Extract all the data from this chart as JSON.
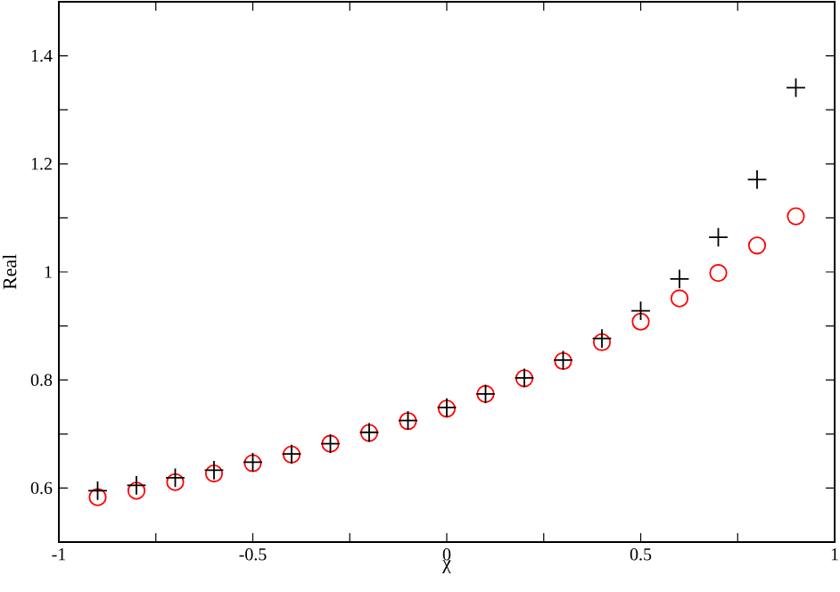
{
  "chart_data": {
    "type": "scatter",
    "xlabel": "χ",
    "ylabel": "Real",
    "x": [
      -0.9,
      -0.8,
      -0.7,
      -0.6,
      -0.5,
      -0.4,
      -0.3,
      -0.2,
      -0.1,
      0,
      0.1,
      0.2,
      0.3,
      0.4,
      0.5,
      0.6,
      0.7,
      0.8,
      0.9
    ],
    "series": [
      {
        "color": "#ff0000",
        "marker": "circle",
        "values": [
          0.583,
          0.595,
          0.611,
          0.627,
          0.646,
          0.662,
          0.682,
          0.702,
          0.724,
          0.747,
          0.774,
          0.803,
          0.835,
          0.87,
          0.908,
          0.951,
          0.998,
          1.049,
          1.103
        ]
      },
      {
        "color": "#000000",
        "marker": "cross",
        "values": [
          0.595,
          0.605,
          0.619,
          0.633,
          0.648,
          0.663,
          0.682,
          0.703,
          0.725,
          0.749,
          0.774,
          0.804,
          0.837,
          0.877,
          0.928,
          0.987,
          1.064,
          1.171,
          1.341
        ]
      }
    ],
    "xlim": [
      -1,
      1
    ],
    "ylim": [
      0.5,
      1.5
    ],
    "xticks": [
      -1,
      {
        "value": -0.75,
        "label": null
      },
      -0.5,
      {
        "value": -0.25,
        "label": null
      },
      0,
      {
        "value": 0.25,
        "label": null
      },
      0.5,
      {
        "value": 0.75,
        "label": null
      },
      1
    ],
    "yticks": [
      {
        "value": 0.5,
        "label": null
      },
      0.6,
      {
        "value": 0.7,
        "label": null
      },
      0.8,
      {
        "value": 0.9,
        "label": null
      },
      {
        "value": 1,
        "label": "1"
      },
      {
        "value": 1.1,
        "label": null
      },
      1.2,
      {
        "value": 1.3,
        "label": null
      },
      1.4,
      {
        "value": 1.5,
        "label": null
      }
    ],
    "grid": false
  }
}
